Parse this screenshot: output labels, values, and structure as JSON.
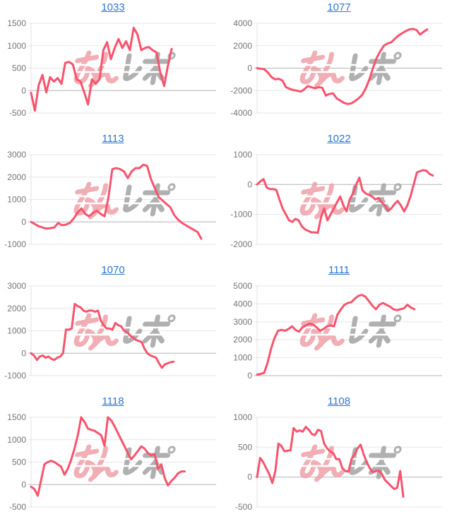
{
  "page": {
    "background": "#ffffff"
  },
  "style": {
    "line_color": "#f8536d",
    "link_color": "#2e76d2",
    "grid_color": "#e6e6e6",
    "zero_line_color": "#b3b3b3",
    "axis_color": "#e0e0e0",
    "tick_label_color": "#757575"
  },
  "watermark": {
    "text_pink": "みん",
    "text_gray": "レポ",
    "pink_color": "#efa0a8",
    "gray_color": "#a3a3a3"
  },
  "chart_data": [
    {
      "type": "line",
      "title": "1033",
      "xlabel": "",
      "ylabel": "",
      "ylim": [
        -500,
        1500
      ],
      "yticks": [
        1500,
        1000,
        500,
        0,
        -500
      ],
      "grid": true,
      "legend": "none",
      "x_fill": 0.76,
      "values": [
        -50,
        -450,
        120,
        350,
        -40,
        300,
        200,
        280,
        150,
        620,
        640,
        580,
        250,
        200,
        -40,
        -310,
        250,
        150,
        250,
        900,
        1080,
        700,
        950,
        1150,
        950,
        1100,
        900,
        1400,
        1250,
        900,
        950,
        970,
        900,
        850,
        400,
        100,
        550,
        930
      ]
    },
    {
      "type": "line",
      "title": "1077",
      "xlabel": "",
      "ylabel": "",
      "ylim": [
        -4000,
        4000
      ],
      "yticks": [
        4000,
        2000,
        0,
        -2000,
        -4000
      ],
      "grid": true,
      "legend": "none",
      "x_fill": 0.92,
      "values": [
        0,
        -50,
        -100,
        -400,
        -800,
        -1000,
        -950,
        -1100,
        -1700,
        -1850,
        -1950,
        -2000,
        -2100,
        -1900,
        -1600,
        -1700,
        -1800,
        -1700,
        -1750,
        -2450,
        -2300,
        -2250,
        -2700,
        -2900,
        -3100,
        -3200,
        -3150,
        -2950,
        -2700,
        -2400,
        -1800,
        -1000,
        0,
        900,
        1500,
        2000,
        2200,
        2300,
        2600,
        2900,
        3100,
        3300,
        3450,
        3500,
        3400,
        3000,
        3250,
        3450
      ]
    },
    {
      "type": "line",
      "title": "1113",
      "xlabel": "",
      "ylabel": "",
      "ylim": [
        -1000,
        3000
      ],
      "yticks": [
        3000,
        2000,
        1000,
        0,
        -1000
      ],
      "grid": true,
      "legend": "none",
      "x_fill": 0.92,
      "values": [
        0,
        -100,
        -200,
        -250,
        -300,
        -280,
        -250,
        -50,
        -150,
        -120,
        -50,
        150,
        400,
        600,
        350,
        250,
        400,
        500,
        350,
        250,
        1100,
        2350,
        2400,
        2350,
        2250,
        1950,
        2250,
        2400,
        2400,
        2550,
        2500,
        1900,
        1500,
        1100,
        950,
        800,
        650,
        300,
        100,
        -50,
        -150,
        -250,
        -350,
        -450,
        -750
      ]
    },
    {
      "type": "line",
      "title": "1022",
      "xlabel": "",
      "ylabel": "",
      "ylim": [
        -2000,
        1000
      ],
      "yticks": [
        1000,
        0,
        -1000,
        -2000
      ],
      "grid": true,
      "legend": "none",
      "x_fill": 0.95,
      "values": [
        0,
        100,
        180,
        -100,
        -150,
        -150,
        -180,
        -500,
        -800,
        -1000,
        -1200,
        -1250,
        -1150,
        -1200,
        -1400,
        -1500,
        -1550,
        -1600,
        -1600,
        -1620,
        -1100,
        -800,
        -1200,
        -1000,
        -800,
        -600,
        -400,
        -700,
        -900,
        -500,
        -300,
        0,
        230,
        -200,
        -300,
        -350,
        -400,
        -500,
        -450,
        -600,
        -700,
        -880,
        -800,
        -650,
        -550,
        -700,
        -900,
        -700,
        -400,
        0,
        400,
        450,
        480,
        460,
        350,
        300
      ]
    },
    {
      "type": "line",
      "title": "1070",
      "xlabel": "",
      "ylabel": "",
      "ylim": [
        -1000,
        3000
      ],
      "yticks": [
        3000,
        2000,
        1000,
        0,
        -1000
      ],
      "grid": true,
      "legend": "none",
      "x_fill": 0.77,
      "values": [
        0,
        -100,
        -300,
        -150,
        -100,
        -200,
        -150,
        -250,
        -300,
        -200,
        -150,
        0,
        1050,
        1050,
        1100,
        2200,
        2100,
        2050,
        1900,
        1850,
        1900,
        1900,
        1850,
        1900,
        1450,
        1250,
        1100,
        1100,
        1050,
        1350,
        1250,
        1200,
        1000,
        950,
        800,
        700,
        600,
        550,
        500,
        200,
        0,
        -100,
        -150,
        -200,
        -450,
        -650,
        -500,
        -450,
        -400,
        -380
      ]
    },
    {
      "type": "line",
      "title": "1111",
      "xlabel": "",
      "ylabel": "",
      "ylim": [
        0,
        5000
      ],
      "yticks": [
        5000,
        4000,
        3000,
        2000,
        1000,
        0
      ],
      "grid": true,
      "legend": "none",
      "x_fill": 0.85,
      "values": [
        50,
        100,
        150,
        700,
        1500,
        2100,
        2500,
        2550,
        2500,
        2600,
        2750,
        2550,
        2450,
        2700,
        2800,
        2900,
        2850,
        2700,
        2500,
        2600,
        2750,
        2800,
        2750,
        3400,
        3700,
        3950,
        4050,
        4100,
        4300,
        4450,
        4500,
        4400,
        4150,
        3900,
        3700,
        3950,
        4050,
        3950,
        3850,
        3700,
        3650,
        3700,
        3750,
        3950,
        3800,
        3700
      ]
    },
    {
      "type": "line",
      "title": "1118",
      "xlabel": "",
      "ylabel": "",
      "ylim": [
        -500,
        1500
      ],
      "yticks": [
        1500,
        1000,
        500,
        0,
        -500
      ],
      "grid": true,
      "legend": "none",
      "x_fill": 0.83,
      "values": [
        -50,
        -100,
        -250,
        100,
        450,
        500,
        530,
        500,
        450,
        400,
        220,
        350,
        550,
        800,
        1100,
        1500,
        1400,
        1250,
        1220,
        1200,
        1150,
        1100,
        860,
        1500,
        1430,
        1300,
        1150,
        1000,
        850,
        700,
        560,
        650,
        750,
        850,
        800,
        700,
        650,
        680,
        350,
        450,
        150,
        -20,
        80,
        150,
        250,
        290,
        290
      ]
    },
    {
      "type": "line",
      "title": "1108",
      "xlabel": "",
      "ylabel": "",
      "ylim": [
        -500,
        1000
      ],
      "yticks": [
        1000,
        500,
        0,
        -500
      ],
      "grid": true,
      "legend": "none",
      "x_fill": 0.79,
      "values": [
        0,
        320,
        250,
        150,
        50,
        -100,
        100,
        560,
        520,
        430,
        440,
        450,
        820,
        760,
        780,
        760,
        840,
        790,
        720,
        700,
        790,
        770,
        560,
        480,
        430,
        400,
        300,
        300,
        150,
        100,
        90,
        300,
        380,
        480,
        540,
        380,
        250,
        150,
        80,
        100,
        110,
        50,
        -50,
        -100,
        -150,
        -200,
        -180,
        100,
        -330
      ]
    }
  ]
}
